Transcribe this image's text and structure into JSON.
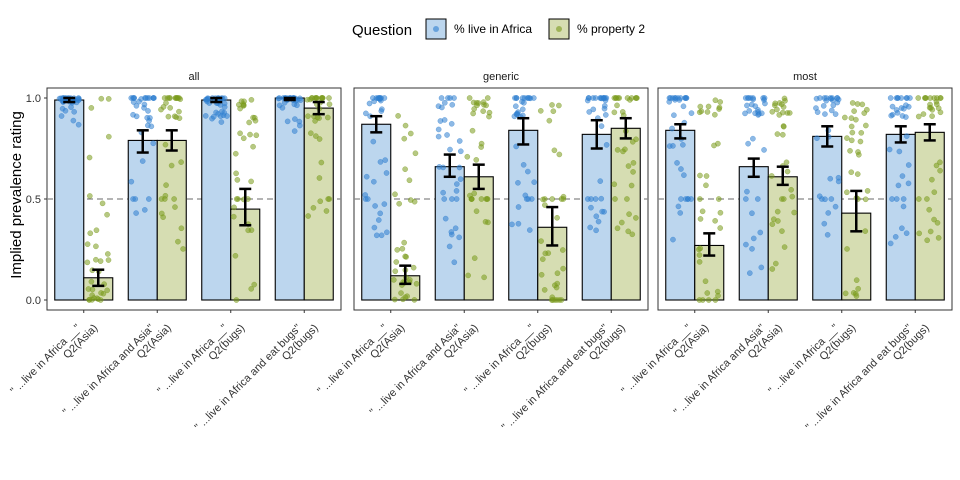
{
  "chart_data": {
    "type": "bar",
    "subtype": "grouped bar with jittered points and 95% error bars, faceted",
    "legend": {
      "title": "Question",
      "position": "top",
      "entries": [
        {
          "label": "% live in Africa",
          "fill": "#bcd6ee",
          "point": "#2f7fd0"
        },
        {
          "label": "% property 2",
          "fill": "#d6ddb2",
          "point": "#7a9a1c"
        }
      ]
    },
    "ylabel": "Implied prevalence rating",
    "xlabel": "",
    "ylim": [
      0,
      1
    ],
    "yticks": [
      "0.0",
      "0.5",
      "1.0"
    ],
    "reference_line": 0.5,
    "grid": false,
    "categories": [
      "\"...live in Africa __\" Q2(Asia)",
      "\"...live in Africa and Asia\" Q2(Asia)",
      "\"...live in Africa __\" Q2(bugs)",
      "\"...live in Africa and eat bugs\" Q2(bugs)"
    ],
    "category_lines": [
      [
        "\" ...live in Africa __\"",
        "Q2(Asia)"
      ],
      [
        "\" ...live in Africa and Asia\"",
        "Q2(Asia)"
      ],
      [
        "\" ...live in Africa __\"",
        "Q2(bugs)"
      ],
      [
        "\" ...live in Africa and eat bugs\"",
        "Q2(bugs)"
      ]
    ],
    "facets": [
      {
        "name": "all",
        "series": [
          {
            "name": "% live in Africa",
            "values": [
              0.99,
              0.79,
              0.99,
              1.0
            ],
            "ci_low": [
              0.98,
              0.73,
              0.98,
              0.99
            ],
            "ci_high": [
              1.0,
              0.84,
              1.0,
              1.0
            ]
          },
          {
            "name": "% property 2",
            "values": [
              0.11,
              0.79,
              0.45,
              0.95
            ],
            "ci_low": [
              0.07,
              0.74,
              0.37,
              0.92
            ],
            "ci_high": [
              0.15,
              0.84,
              0.55,
              0.98
            ]
          }
        ]
      },
      {
        "name": "generic",
        "series": [
          {
            "name": "% live in Africa",
            "values": [
              0.87,
              0.66,
              0.84,
              0.82
            ],
            "ci_low": [
              0.83,
              0.61,
              0.77,
              0.75
            ],
            "ci_high": [
              0.91,
              0.72,
              0.9,
              0.89
            ]
          },
          {
            "name": "% property 2",
            "values": [
              0.12,
              0.61,
              0.36,
              0.85
            ],
            "ci_low": [
              0.08,
              0.55,
              0.27,
              0.8
            ],
            "ci_high": [
              0.17,
              0.67,
              0.46,
              0.9
            ]
          }
        ]
      },
      {
        "name": "most",
        "series": [
          {
            "name": "% live in Africa",
            "values": [
              0.84,
              0.66,
              0.81,
              0.82
            ],
            "ci_low": [
              0.8,
              0.61,
              0.76,
              0.78
            ],
            "ci_high": [
              0.87,
              0.7,
              0.86,
              0.86
            ]
          },
          {
            "name": "% property 2",
            "values": [
              0.27,
              0.61,
              0.43,
              0.83
            ],
            "ci_low": [
              0.22,
              0.57,
              0.34,
              0.79
            ],
            "ci_high": [
              0.33,
              0.66,
              0.54,
              0.87
            ]
          }
        ]
      }
    ]
  }
}
